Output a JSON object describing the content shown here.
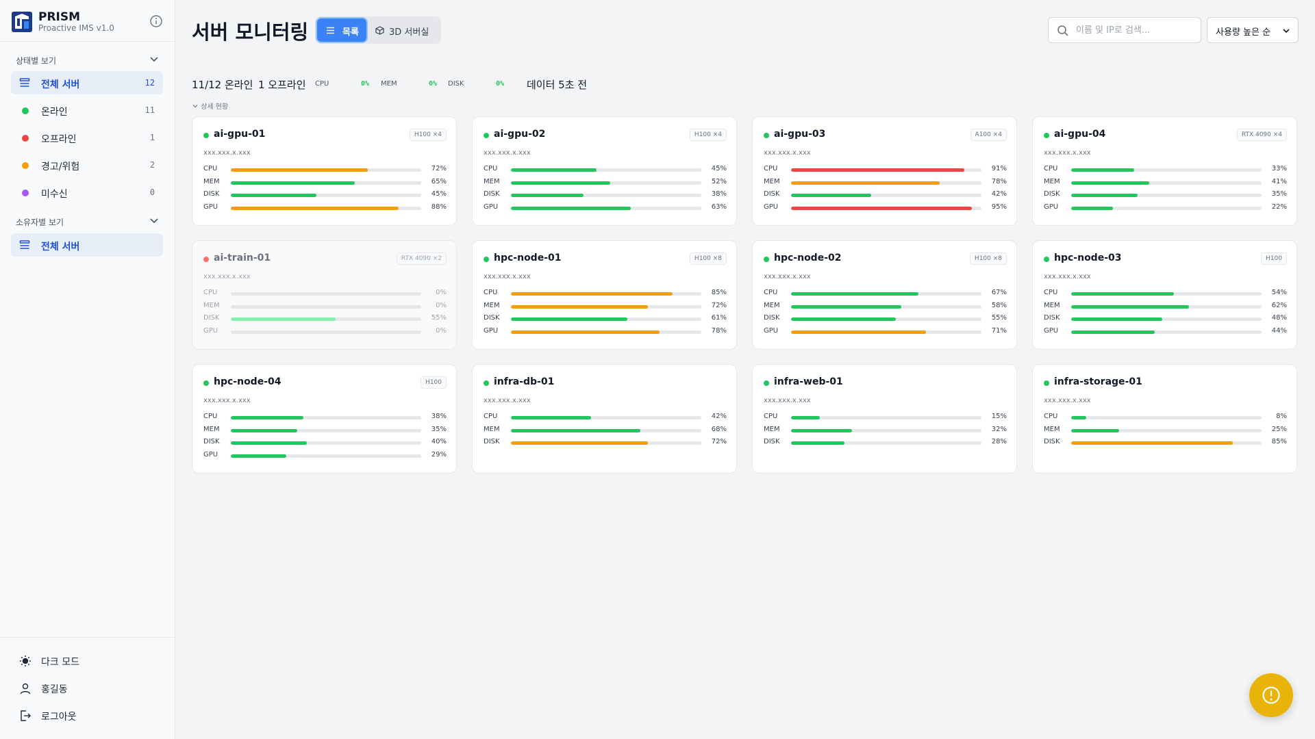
{
  "brand": {
    "name": "PRISM",
    "subtitle": "Proactive IMS v1.0"
  },
  "sidebar": {
    "status_section": "상태별 보기",
    "status_items": [
      {
        "label": "전체 서버",
        "count": "12"
      },
      {
        "label": "온라인",
        "count": "11",
        "color": "#22c55e"
      },
      {
        "label": "오프라인",
        "count": "1",
        "color": "#ef4444"
      },
      {
        "label": "경고/위험",
        "count": "2",
        "color": "#f59e0b"
      },
      {
        "label": "미수신",
        "count": "0",
        "color": "#a855f7"
      }
    ],
    "owner_section": "소유자별 보기",
    "owner_items": [
      {
        "label": "전체 서버"
      }
    ],
    "bottom": {
      "dark_mode": "다크 모드",
      "user": "홍길동",
      "logout": "로그아웃"
    }
  },
  "header": {
    "title": "서버 모니터링",
    "view_list": "목록",
    "view_3d": "3D 서버실",
    "search_placeholder": "이름 및 IP로 검색...",
    "sort_label": "사용량 높은 순"
  },
  "summary": {
    "online": "11/12 온라인",
    "offline": "1 오프라인",
    "cpu_label": "CPU",
    "cpu_value": "0%",
    "mem_label": "MEM",
    "mem_value": "0%",
    "disk_label": "DISK",
    "disk_value": "0%",
    "updated": "데이터 5초 전",
    "detail_toggle": "상세 현황"
  },
  "colors": {
    "green": "#22c55e",
    "orange": "#f59e0b",
    "red": "#ef4444",
    "offline_dot": "#f87171",
    "offline_bar": "#86efac"
  },
  "servers": [
    {
      "name": "ai-gpu-01",
      "badge": "H100 ×4",
      "ip": "xxx.xxx.x.xxx",
      "status": "online",
      "metrics": [
        {
          "label": "CPU",
          "value": 72,
          "text": "72%",
          "color": "orange"
        },
        {
          "label": "MEM",
          "value": 65,
          "text": "65%",
          "color": "green"
        },
        {
          "label": "DISK",
          "value": 45,
          "text": "45%",
          "color": "green"
        },
        {
          "label": "GPU",
          "value": 88,
          "text": "88%",
          "color": "orange"
        }
      ]
    },
    {
      "name": "ai-gpu-02",
      "badge": "H100 ×4",
      "ip": "xxx.xxx.x.xxx",
      "status": "online",
      "metrics": [
        {
          "label": "CPU",
          "value": 45,
          "text": "45%",
          "color": "green"
        },
        {
          "label": "MEM",
          "value": 52,
          "text": "52%",
          "color": "green"
        },
        {
          "label": "DISK",
          "value": 38,
          "text": "38%",
          "color": "green"
        },
        {
          "label": "GPU",
          "value": 63,
          "text": "63%",
          "color": "green"
        }
      ]
    },
    {
      "name": "ai-gpu-03",
      "badge": "A100 ×4",
      "ip": "xxx.xxx.x.xxx",
      "status": "online",
      "metrics": [
        {
          "label": "CPU",
          "value": 91,
          "text": "91%",
          "color": "red"
        },
        {
          "label": "MEM",
          "value": 78,
          "text": "78%",
          "color": "orange"
        },
        {
          "label": "DISK",
          "value": 42,
          "text": "42%",
          "color": "green"
        },
        {
          "label": "GPU",
          "value": 95,
          "text": "95%",
          "color": "red"
        }
      ]
    },
    {
      "name": "ai-gpu-04",
      "badge": "RTX 4090 ×4",
      "ip": "xxx.xxx.x.xxx",
      "status": "online",
      "metrics": [
        {
          "label": "CPU",
          "value": 33,
          "text": "33%",
          "color": "green"
        },
        {
          "label": "MEM",
          "value": 41,
          "text": "41%",
          "color": "green"
        },
        {
          "label": "DISK",
          "value": 35,
          "text": "35%",
          "color": "green"
        },
        {
          "label": "GPU",
          "value": 22,
          "text": "22%",
          "color": "green"
        }
      ]
    },
    {
      "name": "ai-train-01",
      "badge": "RTX 4090 ×2",
      "ip": "xxx.xxx.x.xxx",
      "status": "offline",
      "metrics": [
        {
          "label": "CPU",
          "value": 0,
          "text": "0%",
          "color": "green"
        },
        {
          "label": "MEM",
          "value": 0,
          "text": "0%",
          "color": "green"
        },
        {
          "label": "DISK",
          "value": 55,
          "text": "55%",
          "color": "offline"
        },
        {
          "label": "GPU",
          "value": 0,
          "text": "0%",
          "color": "green"
        }
      ]
    },
    {
      "name": "hpc-node-01",
      "badge": "H100 ×8",
      "ip": "xxx.xxx.x.xxx",
      "status": "online",
      "metrics": [
        {
          "label": "CPU",
          "value": 85,
          "text": "85%",
          "color": "orange"
        },
        {
          "label": "MEM",
          "value": 72,
          "text": "72%",
          "color": "orange"
        },
        {
          "label": "DISK",
          "value": 61,
          "text": "61%",
          "color": "green"
        },
        {
          "label": "GPU",
          "value": 78,
          "text": "78%",
          "color": "orange"
        }
      ]
    },
    {
      "name": "hpc-node-02",
      "badge": "H100 ×8",
      "ip": "xxx.xxx.x.xxx",
      "status": "online",
      "metrics": [
        {
          "label": "CPU",
          "value": 67,
          "text": "67%",
          "color": "green"
        },
        {
          "label": "MEM",
          "value": 58,
          "text": "58%",
          "color": "green"
        },
        {
          "label": "DISK",
          "value": 55,
          "text": "55%",
          "color": "green"
        },
        {
          "label": "GPU",
          "value": 71,
          "text": "71%",
          "color": "orange"
        }
      ]
    },
    {
      "name": "hpc-node-03",
      "badge": "H100",
      "ip": "xxx.xxx.x.xxx",
      "status": "online",
      "metrics": [
        {
          "label": "CPU",
          "value": 54,
          "text": "54%",
          "color": "green"
        },
        {
          "label": "MEM",
          "value": 62,
          "text": "62%",
          "color": "green"
        },
        {
          "label": "DISK",
          "value": 48,
          "text": "48%",
          "color": "green"
        },
        {
          "label": "GPU",
          "value": 44,
          "text": "44%",
          "color": "green"
        }
      ]
    },
    {
      "name": "hpc-node-04",
      "badge": "H100",
      "ip": "xxx.xxx.x.xxx",
      "status": "online",
      "metrics": [
        {
          "label": "CPU",
          "value": 38,
          "text": "38%",
          "color": "green"
        },
        {
          "label": "MEM",
          "value": 35,
          "text": "35%",
          "color": "green"
        },
        {
          "label": "DISK",
          "value": 40,
          "text": "40%",
          "color": "green"
        },
        {
          "label": "GPU",
          "value": 29,
          "text": "29%",
          "color": "green"
        }
      ]
    },
    {
      "name": "infra-db-01",
      "badge": "",
      "ip": "xxx.xxx.x.xxx",
      "status": "online",
      "metrics": [
        {
          "label": "CPU",
          "value": 42,
          "text": "42%",
          "color": "green"
        },
        {
          "label": "MEM",
          "value": 68,
          "text": "68%",
          "color": "green"
        },
        {
          "label": "DISK",
          "value": 72,
          "text": "72%",
          "color": "orange"
        }
      ]
    },
    {
      "name": "infra-web-01",
      "badge": "",
      "ip": "xxx.xxx.x.xxx",
      "status": "online",
      "metrics": [
        {
          "label": "CPU",
          "value": 15,
          "text": "15%",
          "color": "green"
        },
        {
          "label": "MEM",
          "value": 32,
          "text": "32%",
          "color": "green"
        },
        {
          "label": "DISK",
          "value": 28,
          "text": "28%",
          "color": "green"
        }
      ]
    },
    {
      "name": "infra-storage-01",
      "badge": "",
      "ip": "xxx.xxx.x.xxx",
      "status": "online",
      "metrics": [
        {
          "label": "CPU",
          "value": 8,
          "text": "8%",
          "color": "green"
        },
        {
          "label": "MEM",
          "value": 25,
          "text": "25%",
          "color": "green"
        },
        {
          "label": "DISK",
          "value": 85,
          "text": "85%",
          "color": "orange"
        }
      ]
    }
  ]
}
